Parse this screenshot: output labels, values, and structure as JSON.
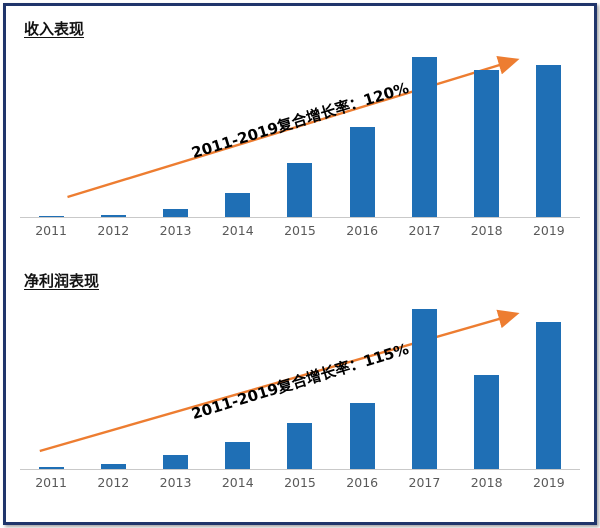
{
  "frame_color": "#20356b",
  "chart_data": [
    {
      "type": "bar",
      "title": "收入表现",
      "annotation": "2011-2019复合增长率：120%",
      "categories": [
        "2011",
        "2012",
        "2013",
        "2014",
        "2015",
        "2016",
        "2017",
        "2018",
        "2019"
      ],
      "values": [
        0.5,
        1,
        5,
        15,
        34,
        56,
        100,
        92,
        95
      ],
      "ylim": [
        0,
        110
      ],
      "xlabel": "",
      "ylabel": "",
      "grid": false,
      "legend": false,
      "bar_color": "#1f6fb5",
      "arrow_color": "#ed7d31",
      "note": "values are relative heights, 2017 = 100 (no y-axis shown in chart)"
    },
    {
      "type": "bar",
      "title": "净利润表现",
      "annotation": "2011-2019复合增长率：115%",
      "categories": [
        "2011",
        "2012",
        "2013",
        "2014",
        "2015",
        "2016",
        "2017",
        "2018",
        "2019"
      ],
      "values": [
        1,
        3,
        9,
        17,
        29,
        41,
        100,
        59,
        92
      ],
      "ylim": [
        0,
        110
      ],
      "xlabel": "",
      "ylabel": "",
      "grid": false,
      "legend": false,
      "bar_color": "#1f6fb5",
      "arrow_color": "#ed7d31",
      "note": "values are relative heights, 2017 = 100 (no y-axis shown in chart)"
    }
  ]
}
